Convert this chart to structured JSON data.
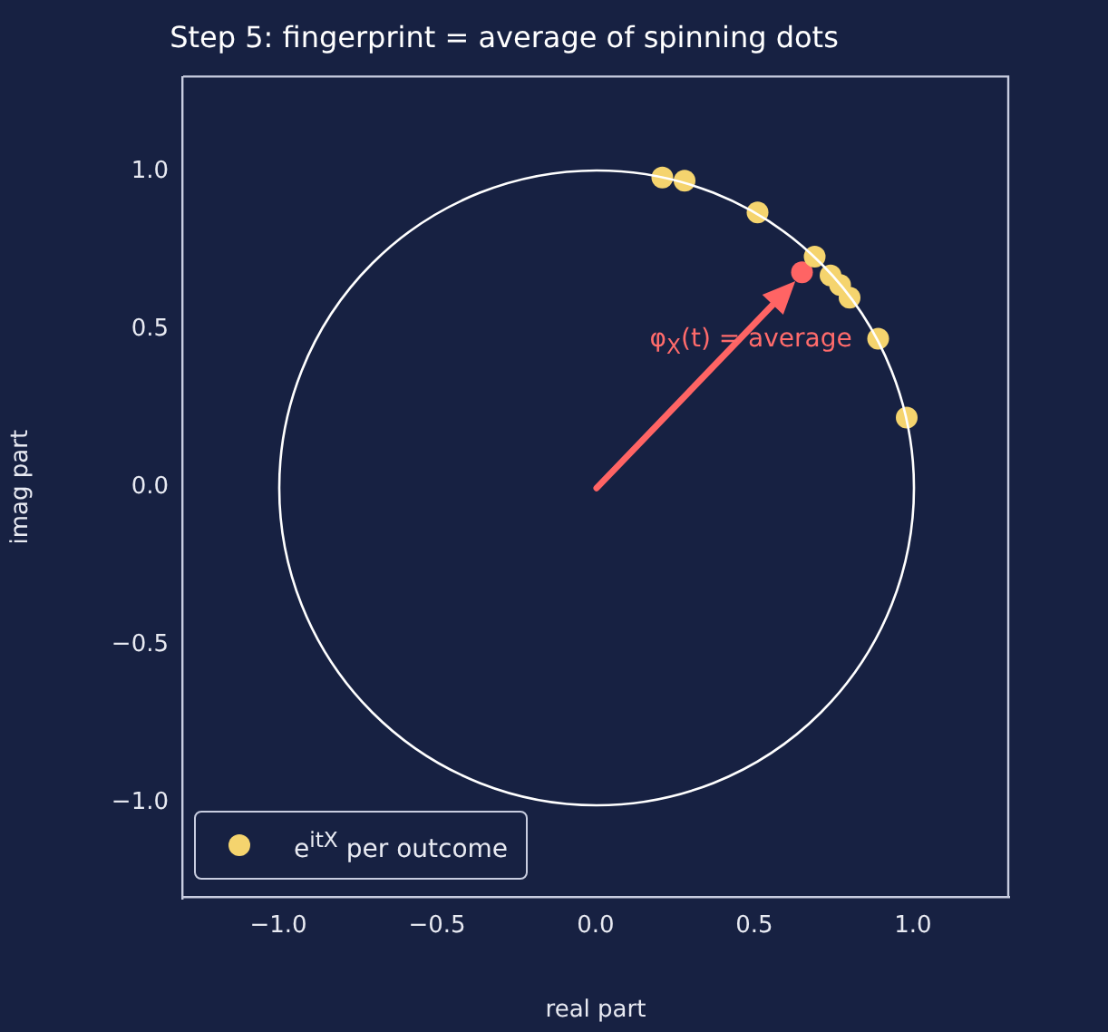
{
  "chart_data": {
    "type": "scatter",
    "title": "Step 5: fingerprint = average of spinning dots",
    "xlabel": "real part",
    "ylabel": "imag part",
    "xlim": [
      -1.3,
      1.3
    ],
    "ylim": [
      -1.3,
      1.3
    ],
    "xticks": [
      {
        "value": -1,
        "label": "−1.0"
      },
      {
        "value": -0.5,
        "label": "−0.5"
      },
      {
        "value": 0,
        "label": "0.0"
      },
      {
        "value": 0.5,
        "label": "0.5"
      },
      {
        "value": 1,
        "label": "1.0"
      }
    ],
    "yticks": [
      {
        "value": -1,
        "label": "−1.0"
      },
      {
        "value": -0.5,
        "label": "−0.5"
      },
      {
        "value": 0,
        "label": "0.0"
      },
      {
        "value": 0.5,
        "label": "0.5"
      },
      {
        "value": 1,
        "label": "1.0"
      }
    ],
    "grid": false,
    "legend": "bottom left",
    "marker": "circle",
    "annotations": [
      {
        "text": "φ$_{X}$(t) = average",
        "x": 0.65,
        "y": 0.68
      }
    ],
    "series": [
      {
        "name": "e$^{itX}$ per outcome",
        "type": "scatter",
        "color": "#f5d46e",
        "x": [
          0.21,
          0.28,
          0.51,
          0.69,
          0.74,
          0.77,
          0.8,
          0.89,
          0.98
        ],
        "values": [
          0.98,
          0.97,
          0.87,
          0.73,
          0.67,
          0.64,
          0.6,
          0.47,
          0.22
        ]
      },
      {
        "type": "scatter",
        "color": "#ff6464",
        "x": [
          0.65
        ],
        "values": [
          0.68
        ]
      }
    ]
  }
}
